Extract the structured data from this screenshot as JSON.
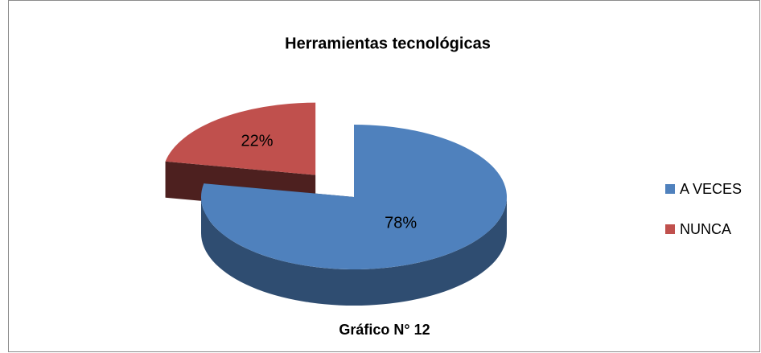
{
  "chart_data": {
    "type": "pie",
    "title": "Herramientas tecnológicas",
    "caption": "Gráfico N° 12",
    "categories": [
      "A VECES",
      "NUNCA"
    ],
    "values": [
      78,
      22
    ],
    "value_labels": [
      "78%",
      "22%"
    ],
    "colors": [
      "#4f81bd",
      "#c0504d"
    ],
    "legend": "right"
  }
}
